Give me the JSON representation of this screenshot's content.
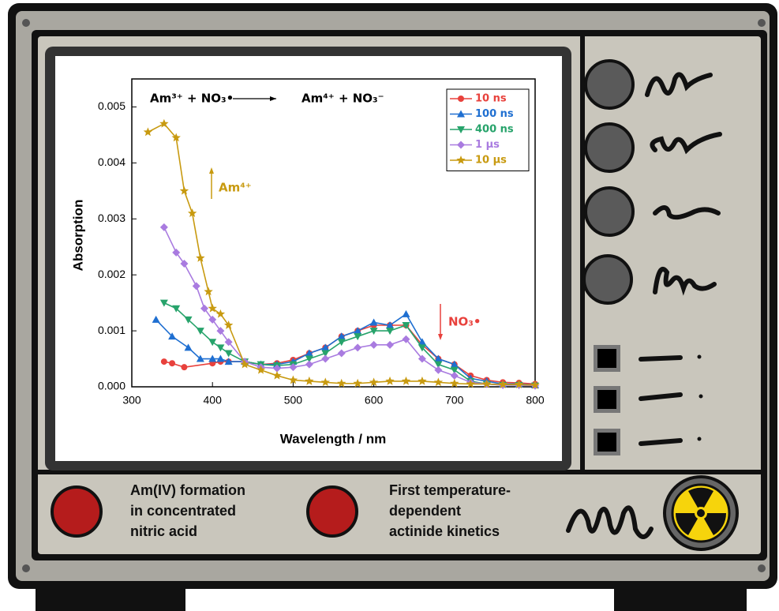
{
  "chart_data": {
    "type": "line",
    "reaction": {
      "left": "Am³⁺ + NO₃•",
      "right": "Am⁴⁺ + NO₃⁻"
    },
    "annotations": [
      {
        "text": "Am⁴⁺",
        "color": "#c89a10"
      },
      {
        "text": "NO₃•",
        "color": "#e8413c"
      }
    ],
    "x_label": "Wavelength / nm",
    "y_label": "Absorption",
    "xlim": [
      300,
      800
    ],
    "xticks": [
      300,
      400,
      500,
      600,
      700,
      800
    ],
    "ylim": [
      0,
      0.0055
    ],
    "yticks": [
      {
        "value": 0,
        "label": "0.000"
      },
      0.001,
      0.002,
      0.003,
      0.004,
      0.005
    ],
    "series": [
      {
        "name": "10 ns",
        "color": "#e8413c",
        "marker": "circle",
        "x": [
          340,
          350,
          365,
          400,
          410,
          420,
          440,
          460,
          480,
          500,
          520,
          540,
          560,
          580,
          600,
          620,
          640,
          660,
          680,
          700,
          720,
          740,
          760,
          780,
          800
        ],
        "values": [
          0.00045,
          0.00042,
          0.00035,
          0.00042,
          0.00045,
          0.00045,
          0.00045,
          0.0004,
          0.00042,
          0.00048,
          0.0006,
          0.0007,
          0.0009,
          0.001,
          0.0011,
          0.0011,
          0.0011,
          0.00075,
          0.0005,
          0.0004,
          0.0002,
          0.00012,
          8e-05,
          7e-05,
          5e-05
        ]
      },
      {
        "name": "100 ns",
        "color": "#1f6fd1",
        "marker": "triangle-up",
        "x": [
          330,
          350,
          370,
          385,
          400,
          410,
          420,
          440,
          460,
          480,
          500,
          520,
          540,
          560,
          580,
          600,
          620,
          640,
          660,
          680,
          700,
          720,
          740,
          760,
          780,
          800
        ],
        "values": [
          0.0012,
          0.0009,
          0.0007,
          0.0005,
          0.0005,
          0.0005,
          0.00045,
          0.00045,
          0.0004,
          0.0004,
          0.00045,
          0.0006,
          0.0007,
          0.0009,
          0.001,
          0.00115,
          0.0011,
          0.0013,
          0.0008,
          0.0005,
          0.0004,
          0.00015,
          0.0001,
          5e-05,
          5e-05,
          3e-05
        ]
      },
      {
        "name": "400 ns",
        "color": "#27a36b",
        "marker": "triangle-down",
        "x": [
          340,
          355,
          370,
          385,
          400,
          410,
          420,
          440,
          460,
          480,
          500,
          520,
          540,
          560,
          580,
          600,
          620,
          640,
          660,
          680,
          700,
          720,
          740,
          760,
          780,
          800
        ],
        "values": [
          0.0015,
          0.0014,
          0.0012,
          0.001,
          0.0008,
          0.0007,
          0.0006,
          0.00045,
          0.0004,
          0.00038,
          0.0004,
          0.0005,
          0.0006,
          0.0008,
          0.0009,
          0.001,
          0.001,
          0.0011,
          0.0007,
          0.0004,
          0.0003,
          0.0001,
          5e-05,
          3e-05,
          3e-05,
          2e-05
        ]
      },
      {
        "name": "1 µs",
        "color": "#a97be0",
        "marker": "diamond",
        "x": [
          340,
          355,
          365,
          380,
          390,
          400,
          410,
          420,
          440,
          460,
          480,
          500,
          520,
          540,
          560,
          580,
          600,
          620,
          640,
          660,
          680,
          700,
          720,
          740,
          760,
          780,
          800
        ],
        "values": [
          0.00285,
          0.0024,
          0.0022,
          0.0018,
          0.0014,
          0.0012,
          0.001,
          0.0008,
          0.00045,
          0.00035,
          0.00033,
          0.00035,
          0.0004,
          0.0005,
          0.0006,
          0.0007,
          0.00075,
          0.00075,
          0.00085,
          0.0005,
          0.0003,
          0.0002,
          8e-05,
          5e-05,
          3e-05,
          3e-05,
          2e-05
        ]
      },
      {
        "name": "10 µs",
        "color": "#c89a10",
        "marker": "star",
        "x": [
          320,
          340,
          355,
          365,
          375,
          385,
          395,
          400,
          410,
          420,
          440,
          460,
          480,
          500,
          520,
          540,
          560,
          580,
          600,
          620,
          640,
          660,
          680,
          700,
          720,
          740,
          760,
          780,
          800
        ],
        "values": [
          0.00455,
          0.0047,
          0.00445,
          0.0035,
          0.0031,
          0.0023,
          0.0017,
          0.0014,
          0.0013,
          0.0011,
          0.0004,
          0.0003,
          0.0002,
          0.00012,
          0.0001,
          8e-05,
          6e-05,
          6e-05,
          8e-05,
          0.0001,
          0.0001,
          0.0001,
          8e-05,
          6e-05,
          5e-05,
          5e-05,
          4e-05,
          4e-05,
          3e-05
        ]
      }
    ]
  },
  "captions": [
    {
      "lines": [
        "Am(IV) formation",
        "in concentrated",
        "nitric acid"
      ]
    },
    {
      "lines": [
        "First temperature-",
        "dependent",
        "actinide kinetics"
      ]
    }
  ]
}
